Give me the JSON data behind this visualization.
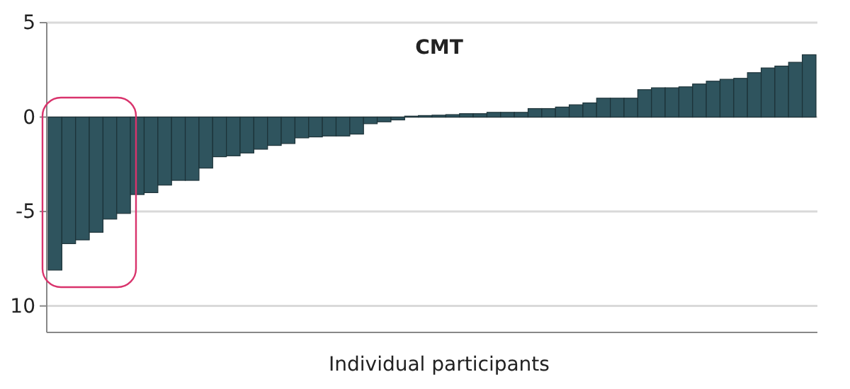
{
  "chart_data": {
    "type": "bar",
    "title": "CMT",
    "xlabel": "Individual participants",
    "categories": [
      null,
      null,
      null,
      null,
      null,
      null,
      null,
      null,
      null,
      null,
      null,
      null,
      null,
      null,
      null,
      null,
      null,
      null,
      null,
      null,
      null,
      null,
      null,
      null,
      null,
      null,
      null,
      null,
      null,
      null,
      null,
      null,
      null,
      null,
      null,
      null,
      null,
      null,
      null,
      null,
      null,
      null,
      null,
      null,
      null,
      null,
      null,
      null,
      null,
      null,
      null,
      null,
      null,
      null,
      null,
      null
    ],
    "values": [
      -8.1,
      -6.7,
      -6.5,
      -6.1,
      -5.4,
      -5.1,
      -4.1,
      -4.0,
      -3.6,
      -3.35,
      -3.35,
      -2.7,
      -2.1,
      -2.05,
      -1.9,
      -1.7,
      -1.5,
      -1.4,
      -1.1,
      -1.05,
      -1.0,
      -1.0,
      -0.9,
      -0.35,
      -0.25,
      -0.15,
      0.05,
      0.08,
      0.1,
      0.13,
      0.18,
      0.18,
      0.25,
      0.25,
      0.25,
      0.45,
      0.45,
      0.53,
      0.65,
      0.75,
      1.0,
      1.0,
      1.0,
      1.45,
      1.55,
      1.55,
      1.6,
      1.75,
      1.9,
      2.0,
      2.05,
      2.35,
      2.6,
      2.7,
      2.9,
      3.3
    ],
    "color": "#2f545e",
    "ylim": [
      -11.4,
      5
    ],
    "yticks": [
      5,
      0,
      -5,
      {
        "value": -10,
        "label": "10"
      }
    ],
    "grid": "y"
  }
}
